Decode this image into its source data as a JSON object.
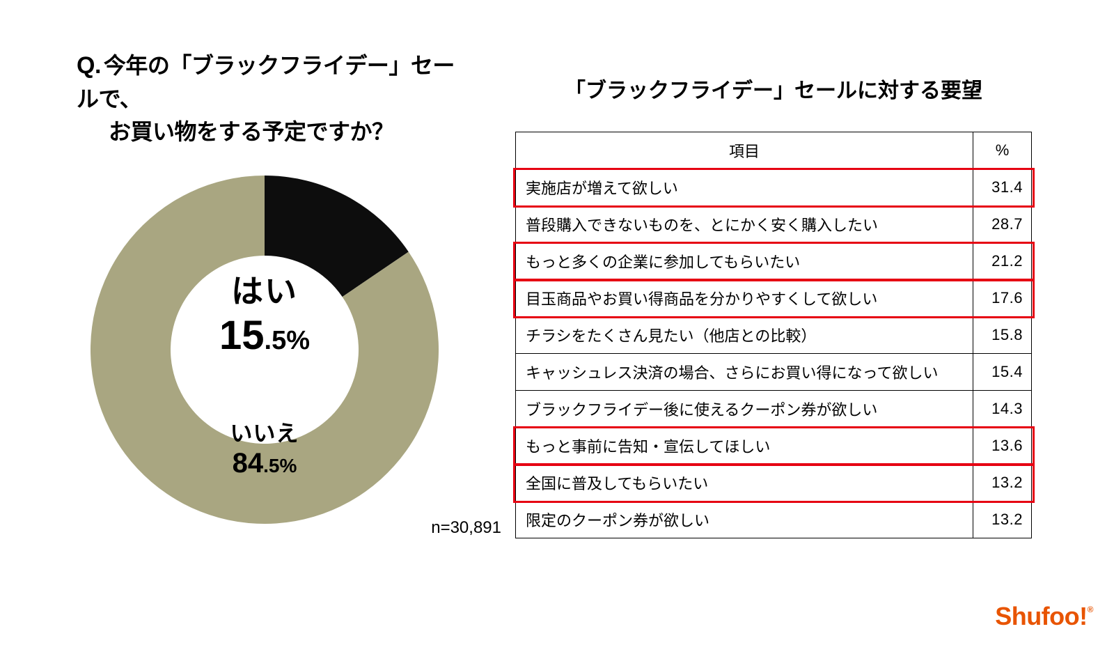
{
  "left": {
    "q_prefix": "Q.",
    "q_line1": "今年の「ブラックフライデー」セールで、",
    "q_line2": "お買い物をする予定ですか？",
    "yes_label": "はい",
    "yes_pct_big": "15",
    "yes_pct_small": ".5%",
    "no_label": "いいえ",
    "no_pct_big": "84",
    "no_pct_small": ".5%",
    "sample_n": "n=30,891",
    "donut": {
      "type": "donut",
      "values": [
        15.5,
        84.5
      ],
      "colors": [
        "#0d0d0d",
        "#a9a681"
      ],
      "inner_radius": 135,
      "outer_radius": 250,
      "start_angle_deg": 0,
      "background_color": "#ffffff"
    }
  },
  "right": {
    "title": "「ブラックフライデー」セールに対する要望",
    "columns": {
      "item": "項目",
      "pct": "%"
    },
    "rows": [
      {
        "item": "実施店が増えて欲しい",
        "pct": "31.4",
        "highlight": true
      },
      {
        "item": "普段購入できないものを、とにかく安く購入したい",
        "pct": "28.7",
        "highlight": false
      },
      {
        "item": "もっと多くの企業に参加してもらいたい",
        "pct": "21.2",
        "highlight": true
      },
      {
        "item": "目玉商品やお買い得商品を分かりやすくして欲しい",
        "pct": "17.6",
        "highlight": true
      },
      {
        "item": "チラシをたくさん見たい（他店との比較）",
        "pct": "15.8",
        "highlight": false
      },
      {
        "item": "キャッシュレス決済の場合、さらにお買い得になって欲しい",
        "pct": "15.4",
        "highlight": false
      },
      {
        "item": "ブラックフライデー後に使えるクーポン券が欲しい",
        "pct": "14.3",
        "highlight": false
      },
      {
        "item": "もっと事前に告知・宣伝してほしい",
        "pct": "13.6",
        "highlight": true
      },
      {
        "item": "全国に普及してもらいたい",
        "pct": "13.2",
        "highlight": true
      },
      {
        "item": "限定のクーポン券が欲しい",
        "pct": "13.2",
        "highlight": false
      }
    ],
    "highlight_color": "#e60012",
    "border_color": "#000000",
    "row_font_size": 22
  },
  "logo": {
    "text": "Shufoo",
    "bang": "!",
    "reg": "®",
    "color": "#e85400"
  }
}
